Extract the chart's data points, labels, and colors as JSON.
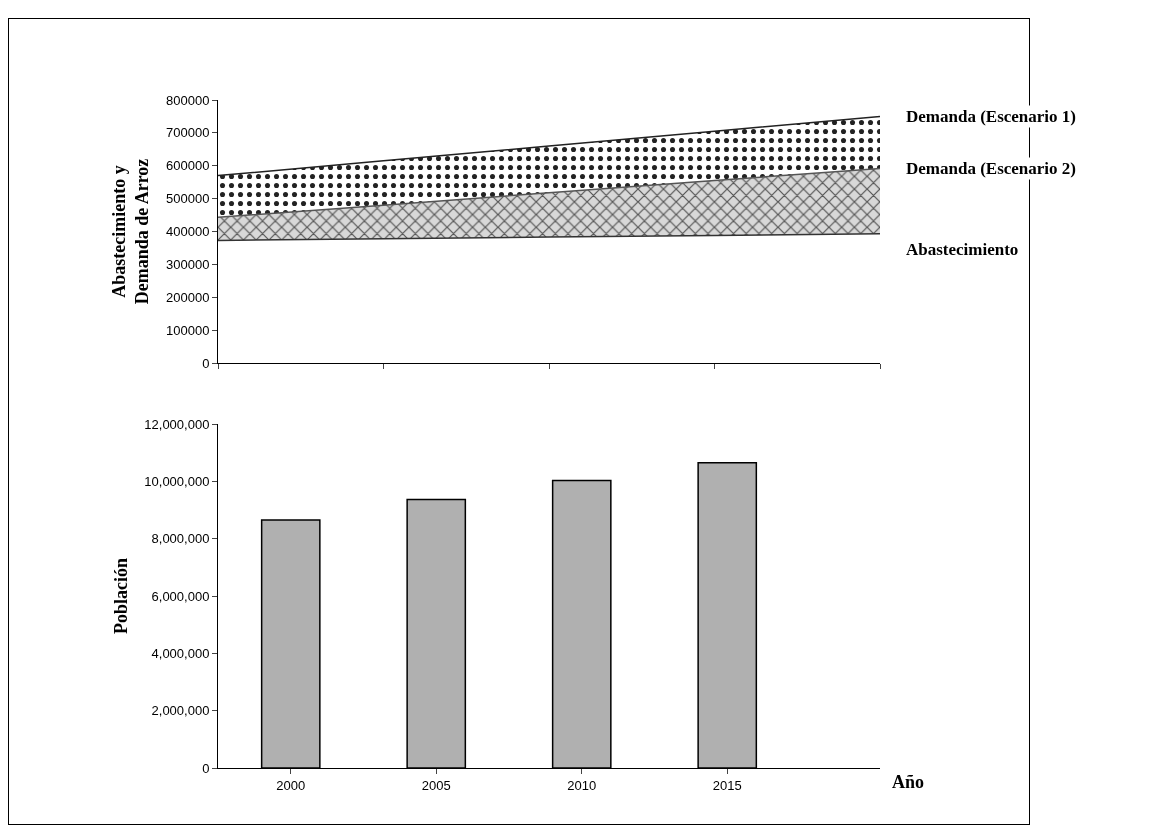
{
  "chart_data": [
    {
      "type": "area",
      "ylabel": "Abastecimiento y\nDemanda de Arroz",
      "categories": [
        null,
        null,
        null,
        null,
        null
      ],
      "ylim": [
        0,
        800000
      ],
      "yticks": [
        0,
        100000,
        200000,
        300000,
        400000,
        500000,
        600000,
        700000,
        800000
      ],
      "tick_labels": "y",
      "grid": false,
      "legend": false,
      "series": [
        {
          "name": "Abastecimiento",
          "type": "line",
          "color": "#333333",
          "values": [
            373000,
            378000,
            383000,
            388000,
            393000
          ]
        },
        {
          "name": "Demanda (Escenario 2)",
          "type": "area",
          "color": "#555555",
          "values": [
            443000,
            480000,
            518000,
            555000,
            592000
          ]
        },
        {
          "name": "Demanda (Escenario 1)",
          "type": "area",
          "color": "#222222",
          "values": [
            570000,
            615000,
            660000,
            705000,
            750000
          ]
        }
      ]
    },
    {
      "type": "bar",
      "ylabel": "Población",
      "xlabel": "Año",
      "categories": [
        "2000",
        "2005",
        "2010",
        "2015"
      ],
      "values": [
        8650000,
        9370000,
        10030000,
        10650000
      ],
      "color": "#b0b0b0",
      "ylim": [
        0,
        12000000
      ],
      "yticks": [
        {
          "value": 0,
          "label": "0"
        },
        {
          "value": 2000000,
          "label": "2,000,000"
        },
        {
          "value": 4000000,
          "label": "4,000,000"
        },
        {
          "value": 6000000,
          "label": "6,000,000"
        },
        {
          "value": 8000000,
          "label": "8,000,000"
        },
        {
          "value": 10000000,
          "label": "10,000,000"
        },
        {
          "value": 12000000,
          "label": "12,000,000"
        }
      ],
      "grid": false,
      "legend": false
    }
  ]
}
